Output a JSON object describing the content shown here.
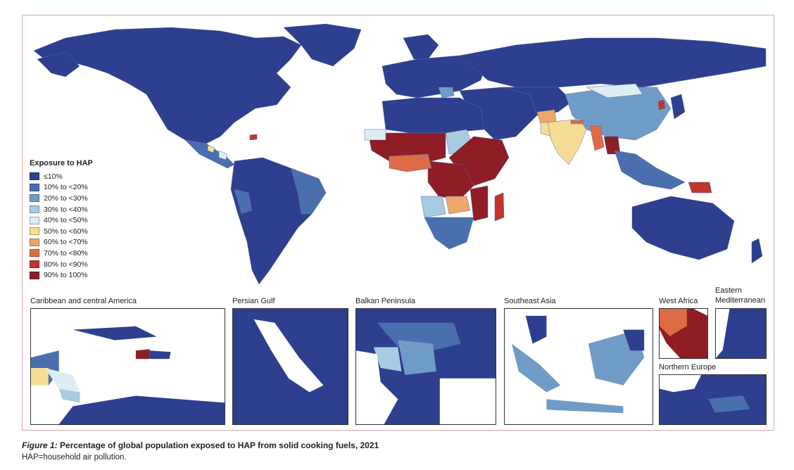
{
  "legend": {
    "title": "Exposure to HAP",
    "items": [
      {
        "label": "≤10%",
        "color": "#2e3f8f"
      },
      {
        "label": "10% to <20%",
        "color": "#4a6fae"
      },
      {
        "label": "20% to <30%",
        "color": "#6f9cc6"
      },
      {
        "label": "30% to <40%",
        "color": "#a7cbe0"
      },
      {
        "label": "40% to <50%",
        "color": "#deedf3"
      },
      {
        "label": "50% to <60%",
        "color": "#f7dd93"
      },
      {
        "label": "60% to <70%",
        "color": "#eda76a"
      },
      {
        "label": "70% to <80%",
        "color": "#dd6b45"
      },
      {
        "label": "80% to <90%",
        "color": "#c0352c"
      },
      {
        "label": "90% to 100%",
        "color": "#8e1d26"
      }
    ]
  },
  "insets": [
    {
      "label": "Caribbean and central America"
    },
    {
      "label": "Persian Gulf"
    },
    {
      "label": "Balkan Peninsula"
    },
    {
      "label": "Southeast Asia"
    },
    {
      "label": "West Africa"
    },
    {
      "label": "Eastern\nMediterranean"
    },
    {
      "label": "Northern Europe"
    }
  ],
  "caption": {
    "figure_label": "Figure 1:",
    "title": "Percentage of global population exposed to HAP from solid cooking fuels, 2021",
    "note": "HAP=household air pollution."
  }
}
